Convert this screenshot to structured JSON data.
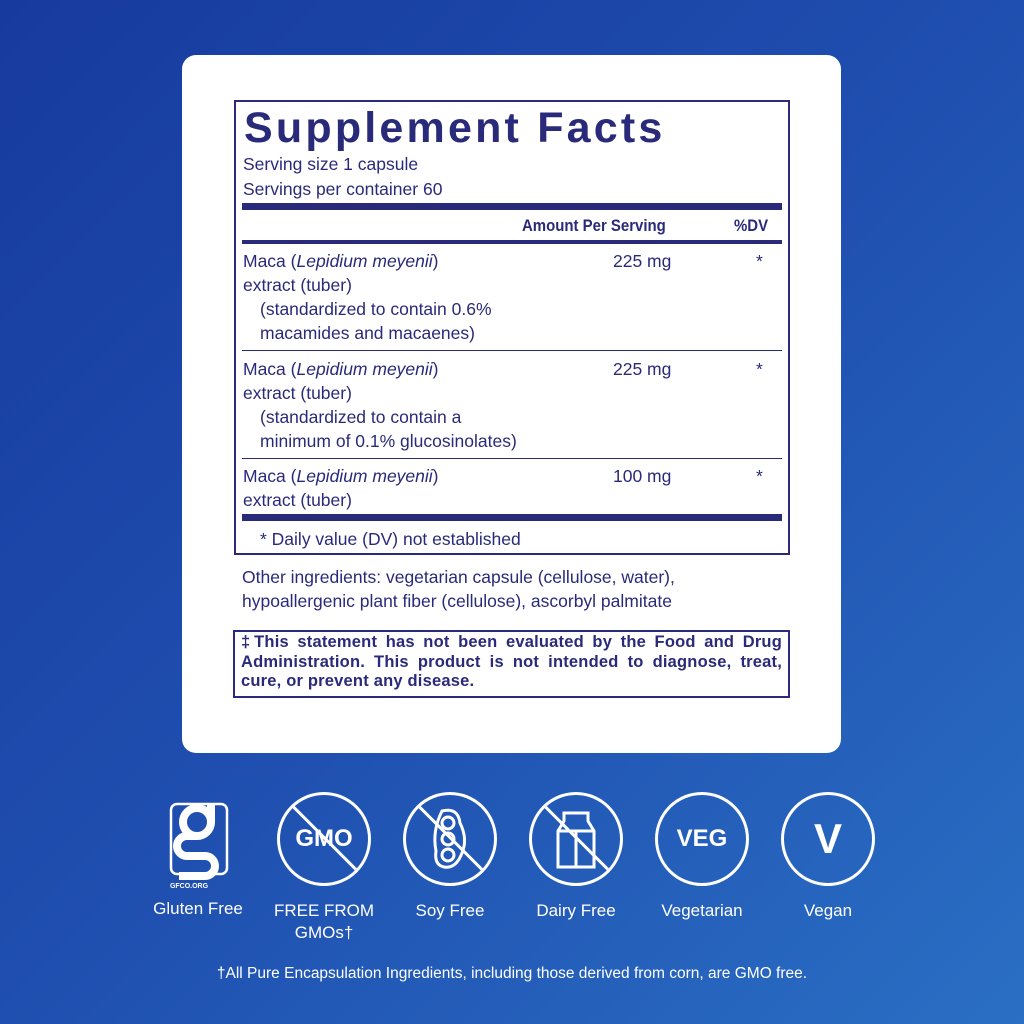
{
  "facts": {
    "title": "Supplement Facts",
    "serving_size": "Serving size  1 capsule",
    "servings_per_container": "Servings per container  60",
    "col_amount": "Amount Per Serving",
    "col_dv": "%DV",
    "rows": [
      {
        "name": "Maca (",
        "latin": "Lepidium meyenii",
        "close": ")",
        "line2": "extract (tuber)",
        "line3": "(standardized to contain 0.6%",
        "line4": "macamides and macaenes)",
        "amount": "225 mg",
        "dv": "*"
      },
      {
        "name": "Maca (",
        "latin": "Lepidium meyenii",
        "close": ")",
        "line2": "extract (tuber)",
        "line3": "(standardized to contain a",
        "line4": "minimum of 0.1% glucosinolates)",
        "amount": "225 mg",
        "dv": "*"
      },
      {
        "name": "Maca (",
        "latin": "Lepidium meyenii",
        "close": ")",
        "line2": "extract (tuber)",
        "amount": "100 mg",
        "dv": "*"
      }
    ],
    "footnote": "* Daily value (DV) not established"
  },
  "other_ingredients": [
    "Other ingredients: vegetarian capsule (cellulose, water),",
    "hypoallergenic plant fiber (cellulose), ascorbyl palmitate"
  ],
  "statement": "‡This statement has not been evaluated by the Food and Drug Administration. This product is not intended to diagnose, treat, cure, or prevent any disease.",
  "badges": [
    {
      "icon": "gluten-free-icon",
      "logo_text": "GFCO.ORG",
      "label": "Gluten Free"
    },
    {
      "icon": "no-gmo-icon",
      "icon_text": "GMO",
      "label": "FREE FROM GMOs†"
    },
    {
      "icon": "no-soy-icon",
      "label": "Soy Free"
    },
    {
      "icon": "no-dairy-icon",
      "label": "Dairy Free"
    },
    {
      "icon": "veg-icon",
      "icon_text": "VEG",
      "label": "Vegetarian"
    },
    {
      "icon": "vegan-icon",
      "icon_text": "V",
      "label": "Vegan"
    }
  ],
  "footer_note": "†All Pure Encapsulation Ingredients, including those derived from corn, are GMO free.",
  "colors": {
    "navy": "#2a2a7a",
    "background": "#1f4fb0"
  }
}
